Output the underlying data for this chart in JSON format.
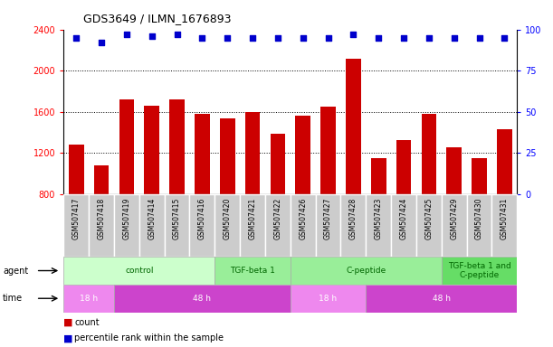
{
  "title": "GDS3649 / ILMN_1676893",
  "samples": [
    "GSM507417",
    "GSM507418",
    "GSM507419",
    "GSM507414",
    "GSM507415",
    "GSM507416",
    "GSM507420",
    "GSM507421",
    "GSM507422",
    "GSM507426",
    "GSM507427",
    "GSM507428",
    "GSM507423",
    "GSM507424",
    "GSM507425",
    "GSM507429",
    "GSM507430",
    "GSM507431"
  ],
  "counts": [
    1280,
    1080,
    1720,
    1660,
    1720,
    1580,
    1540,
    1600,
    1390,
    1560,
    1650,
    2120,
    1150,
    1330,
    1580,
    1260,
    1150,
    1430
  ],
  "percentile": [
    95,
    92,
    97,
    96,
    97,
    95,
    95,
    95,
    95,
    95,
    95,
    97,
    95,
    95,
    95,
    95,
    95,
    95
  ],
  "bar_color": "#cc0000",
  "dot_color": "#0000cc",
  "ylim_left": [
    800,
    2400
  ],
  "ylim_right": [
    0,
    100
  ],
  "yticks_left": [
    800,
    1200,
    1600,
    2000,
    2400
  ],
  "yticks_right": [
    0,
    25,
    50,
    75,
    100
  ],
  "agent_data": [
    {
      "label": "control",
      "start": 0,
      "end": 6,
      "color": "#ccffcc",
      "text_color": "#006600"
    },
    {
      "label": "TGF-beta 1",
      "start": 6,
      "end": 9,
      "color": "#99ee99",
      "text_color": "#006600"
    },
    {
      "label": "C-peptide",
      "start": 9,
      "end": 15,
      "color": "#99ee99",
      "text_color": "#006600"
    },
    {
      "label": "TGF-beta 1 and\nC-peptide",
      "start": 15,
      "end": 18,
      "color": "#66dd66",
      "text_color": "#006600"
    }
  ],
  "time_data": [
    {
      "label": "18 h",
      "start": 0,
      "end": 2,
      "color": "#ee88ee"
    },
    {
      "label": "48 h",
      "start": 2,
      "end": 9,
      "color": "#cc44cc"
    },
    {
      "label": "18 h",
      "start": 9,
      "end": 12,
      "color": "#ee88ee"
    },
    {
      "label": "48 h",
      "start": 12,
      "end": 18,
      "color": "#cc44cc"
    }
  ],
  "sample_bg_color": "#cccccc",
  "sample_border_color": "#ffffff",
  "legend_count_color": "#cc0000",
  "legend_pct_color": "#0000cc",
  "bg_color": "#ffffff",
  "grid_color": "#000000",
  "left_label_color": "#000000"
}
